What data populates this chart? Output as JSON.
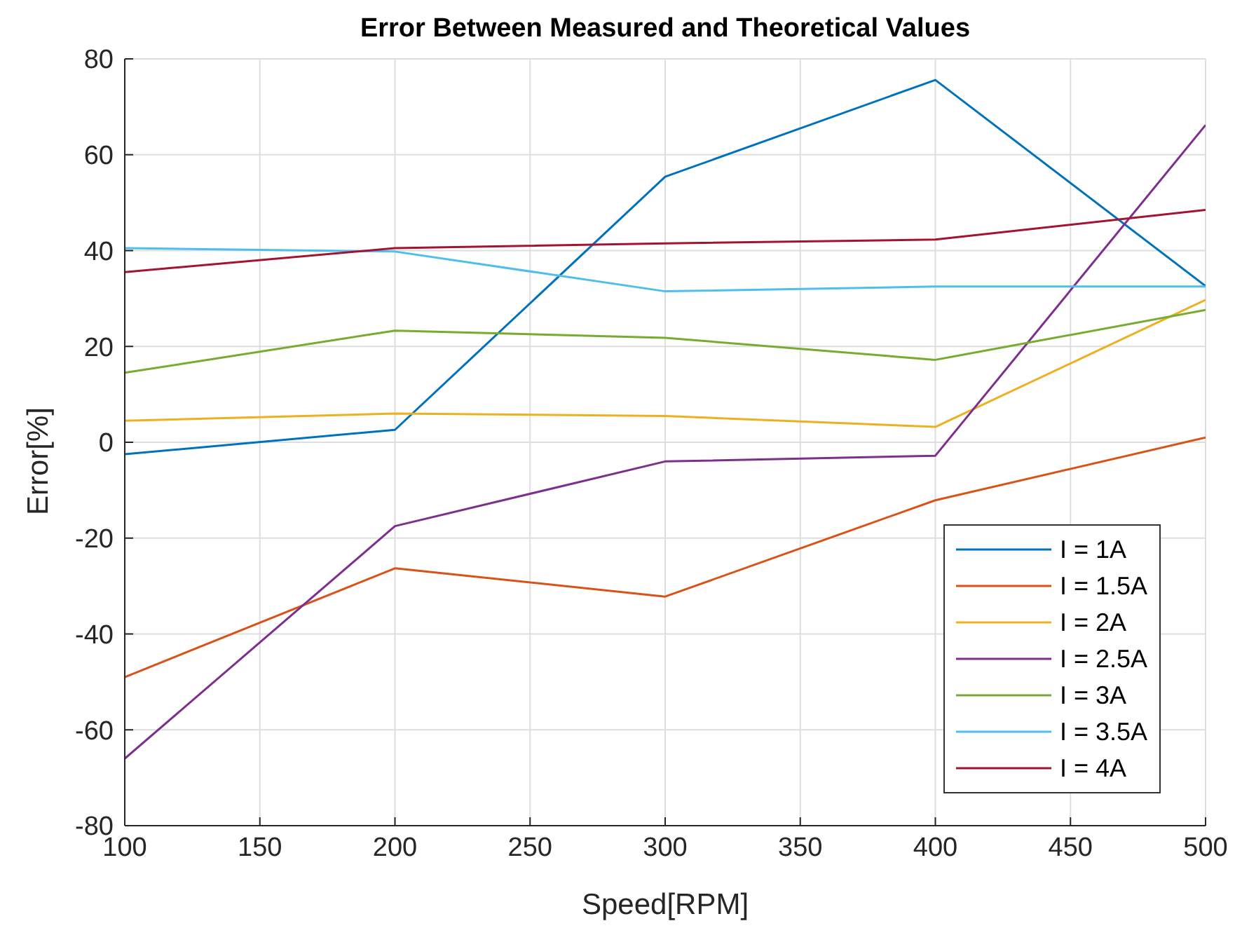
{
  "chart_data": {
    "type": "line",
    "title": "Error Between Measured and Theoretical Values",
    "xlabel": "Speed[RPM]",
    "ylabel": "Error[%]",
    "x": [
      100,
      200,
      300,
      400,
      500
    ],
    "series": [
      {
        "name": "I = 1A",
        "color": "#0072bd",
        "values": [
          -2.5,
          2.6,
          55.4,
          75.6,
          32.6
        ]
      },
      {
        "name": "I = 1.5A",
        "color": "#d95319",
        "values": [
          -49,
          -26.3,
          -32.2,
          -12.1,
          1
        ]
      },
      {
        "name": "I = 2A",
        "color": "#edb120",
        "values": [
          4.5,
          6,
          5.5,
          3.2,
          29.7
        ]
      },
      {
        "name": "I = 2.5A",
        "color": "#7e2f8e",
        "values": [
          -66,
          -17.5,
          -4,
          -2.8,
          66.2
        ]
      },
      {
        "name": "I = 3A",
        "color": "#77ac30",
        "values": [
          14.5,
          23.3,
          21.8,
          17.2,
          27.6
        ]
      },
      {
        "name": "I = 3.5A",
        "color": "#4dbeee",
        "values": [
          40.5,
          39.8,
          31.5,
          32.5,
          32.5
        ]
      },
      {
        "name": "I = 4A",
        "color": "#a2142f",
        "values": [
          35.5,
          40.5,
          41.5,
          42.3,
          48.5
        ]
      }
    ],
    "xlim": [
      100,
      500
    ],
    "xticks": [
      100,
      150,
      200,
      250,
      300,
      350,
      400,
      450,
      500
    ],
    "ylim": [
      -80,
      80
    ],
    "yticks": [
      -80,
      -60,
      -40,
      -20,
      0,
      20,
      40,
      60,
      80
    ],
    "grid": true,
    "legend": "bottom right",
    "marker": "none",
    "line_style": "solid"
  }
}
